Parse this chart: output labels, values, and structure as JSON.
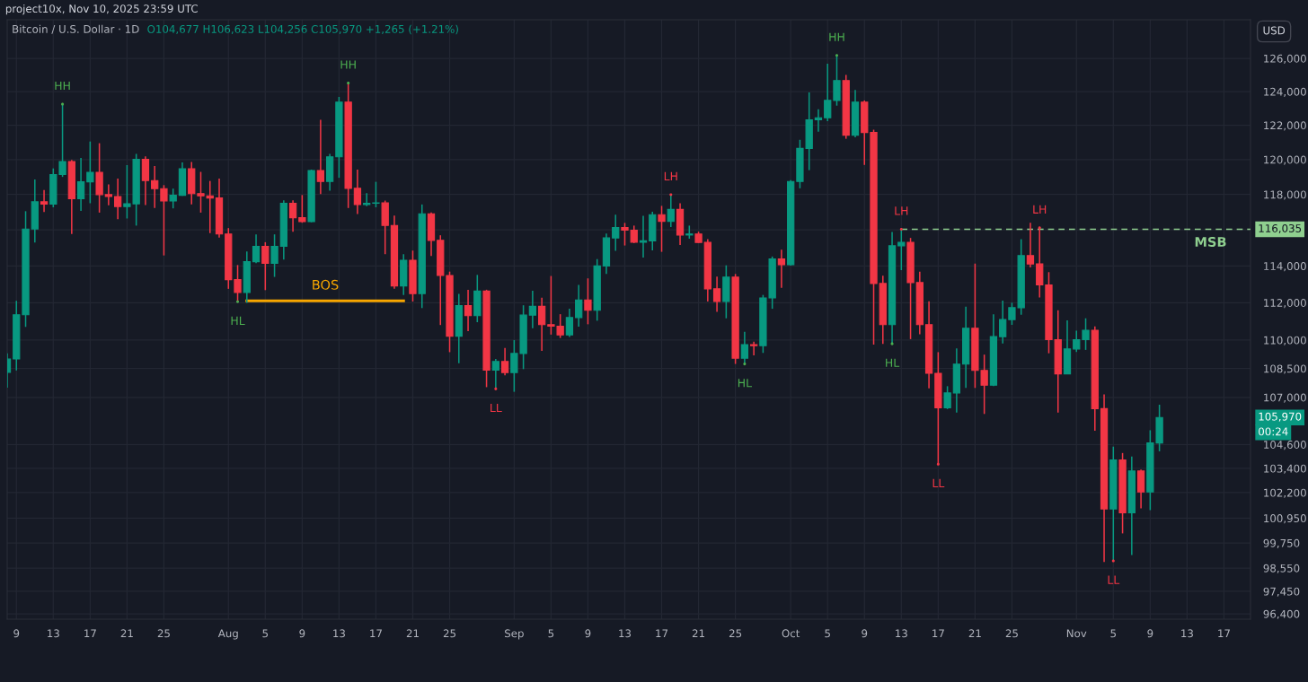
{
  "chart_data": {
    "type": "candlestick",
    "title": "Bitcoin / U.S. Dollar · 1D",
    "subtitle": "O104,677 H106,623 L104,256 C105,970 +1,265 (+1.21%)",
    "x": [
      "2025-07-08",
      "2025-07-09",
      "2025-07-10",
      "2025-07-11",
      "2025-07-12",
      "2025-07-13",
      "2025-07-14",
      "2025-07-15",
      "2025-07-16",
      "2025-07-17",
      "2025-07-18",
      "2025-07-19",
      "2025-07-20",
      "2025-07-21",
      "2025-07-22",
      "2025-07-23",
      "2025-07-24",
      "2025-07-25",
      "2025-07-26",
      "2025-07-27",
      "2025-07-28",
      "2025-07-29",
      "2025-07-30",
      "2025-07-31",
      "2025-08-01",
      "2025-08-02",
      "2025-08-03",
      "2025-08-04",
      "2025-08-05",
      "2025-08-06",
      "2025-08-07",
      "2025-08-08",
      "2025-08-09",
      "2025-08-10",
      "2025-08-11",
      "2025-08-12",
      "2025-08-13",
      "2025-08-14",
      "2025-08-15",
      "2025-08-16",
      "2025-08-17",
      "2025-08-18",
      "2025-08-19",
      "2025-08-20",
      "2025-08-21",
      "2025-08-22",
      "2025-08-23",
      "2025-08-24",
      "2025-08-25",
      "2025-08-26",
      "2025-08-27",
      "2025-08-28",
      "2025-08-29",
      "2025-08-30",
      "2025-08-31",
      "2025-09-01",
      "2025-09-02",
      "2025-09-03",
      "2025-09-04",
      "2025-09-05",
      "2025-09-06",
      "2025-09-07",
      "2025-09-08",
      "2025-09-09",
      "2025-09-10",
      "2025-09-11",
      "2025-09-12",
      "2025-09-13",
      "2025-09-14",
      "2025-09-15",
      "2025-09-16",
      "2025-09-17",
      "2025-09-18",
      "2025-09-19",
      "2025-09-20",
      "2025-09-21",
      "2025-09-22",
      "2025-09-23",
      "2025-09-24",
      "2025-09-25",
      "2025-09-26",
      "2025-09-27",
      "2025-09-28",
      "2025-09-29",
      "2025-09-30",
      "2025-10-01",
      "2025-10-02",
      "2025-10-03",
      "2025-10-04",
      "2025-10-05",
      "2025-10-06",
      "2025-10-07",
      "2025-10-08",
      "2025-10-09",
      "2025-10-10",
      "2025-10-11",
      "2025-10-12",
      "2025-10-13",
      "2025-10-14",
      "2025-10-15",
      "2025-10-16",
      "2025-10-17",
      "2025-10-18",
      "2025-10-19",
      "2025-10-20",
      "2025-10-21",
      "2025-10-22",
      "2025-10-23",
      "2025-10-24",
      "2025-10-25",
      "2025-10-26",
      "2025-10-27",
      "2025-10-28",
      "2025-10-29",
      "2025-10-30",
      "2025-10-31",
      "2025-11-01",
      "2025-11-02",
      "2025-11-03",
      "2025-11-04",
      "2025-11-05",
      "2025-11-06",
      "2025-11-07",
      "2025-11-08",
      "2025-11-09",
      "2025-11-10"
    ],
    "ohlc": [
      [
        108300,
        109300,
        107500,
        109000
      ],
      [
        109000,
        112100,
        108400,
        111350
      ],
      [
        111350,
        117050,
        110700,
        116050
      ],
      [
        116050,
        118860,
        115300,
        117580
      ],
      [
        117580,
        118250,
        117000,
        117450
      ],
      [
        117450,
        119490,
        117270,
        119140
      ],
      [
        119140,
        123250,
        119000,
        119890
      ],
      [
        119890,
        119980,
        115770,
        117750
      ],
      [
        117750,
        120100,
        117070,
        118720
      ],
      [
        118720,
        121050,
        117500,
        119260
      ],
      [
        119260,
        120950,
        116970,
        117990
      ],
      [
        117990,
        118570,
        117380,
        117880
      ],
      [
        117880,
        118900,
        116600,
        117315
      ],
      [
        117315,
        119680,
        116640,
        117470
      ],
      [
        117470,
        120330,
        116240,
        120020
      ],
      [
        120020,
        120190,
        117400,
        118790
      ],
      [
        118790,
        119630,
        117230,
        118330
      ],
      [
        118330,
        118530,
        114580,
        117630
      ],
      [
        117630,
        118330,
        117210,
        117950
      ],
      [
        117950,
        119830,
        117920,
        119470
      ],
      [
        119470,
        119860,
        117430,
        118050
      ],
      [
        118050,
        119290,
        116970,
        117920
      ],
      [
        117920,
        118770,
        115820,
        117800
      ],
      [
        117800,
        118900,
        115570,
        115770
      ],
      [
        115770,
        116100,
        112750,
        113250
      ],
      [
        113250,
        114050,
        112050,
        112550
      ],
      [
        112550,
        114800,
        111990,
        114235
      ],
      [
        114235,
        115750,
        114160,
        115085
      ],
      [
        115085,
        115315,
        112680,
        114140
      ],
      [
        114140,
        115750,
        113400,
        115085
      ],
      [
        115085,
        117665,
        114350,
        117500
      ],
      [
        117500,
        117665,
        115900,
        116685
      ],
      [
        116685,
        117965,
        116400,
        116460
      ],
      [
        116460,
        119420,
        116430,
        119370
      ],
      [
        119370,
        122320,
        118015,
        118740
      ],
      [
        118740,
        120330,
        118210,
        120160
      ],
      [
        120160,
        123680,
        118950,
        123370
      ],
      [
        123370,
        124510,
        117230,
        118350
      ],
      [
        118350,
        119420,
        116890,
        117430
      ],
      [
        117430,
        118070,
        117330,
        117500
      ],
      [
        117500,
        118720,
        117270,
        117520
      ],
      [
        117520,
        117650,
        114650,
        116250
      ],
      [
        116250,
        116800,
        112750,
        112910
      ],
      [
        112910,
        114650,
        112420,
        114315
      ],
      [
        114315,
        114850,
        112060,
        112490
      ],
      [
        112490,
        117430,
        111710,
        116900
      ],
      [
        116900,
        116985,
        114555,
        115415
      ],
      [
        115415,
        115700,
        110800,
        113480
      ],
      [
        113480,
        113690,
        109360,
        110205
      ],
      [
        110205,
        112470,
        108780,
        111840
      ],
      [
        111840,
        112700,
        110480,
        111300
      ],
      [
        111300,
        113510,
        110950,
        112630
      ],
      [
        112630,
        112700,
        107530,
        108420
      ],
      [
        108420,
        109000,
        107440,
        108870
      ],
      [
        108870,
        109580,
        108150,
        108290
      ],
      [
        108290,
        110000,
        107290,
        109290
      ],
      [
        109290,
        111860,
        108470,
        111330
      ],
      [
        111330,
        112650,
        110630,
        111800
      ],
      [
        111800,
        112270,
        109430,
        110820
      ],
      [
        110820,
        113450,
        110290,
        110740
      ],
      [
        110740,
        111380,
        110110,
        110270
      ],
      [
        110270,
        111670,
        110160,
        111200
      ],
      [
        111200,
        112960,
        110710,
        112150
      ],
      [
        112150,
        113320,
        110840,
        111590
      ],
      [
        111590,
        114380,
        111030,
        114000
      ],
      [
        114000,
        115800,
        113560,
        115550
      ],
      [
        115550,
        116850,
        114830,
        116135
      ],
      [
        116135,
        116390,
        115130,
        115985
      ],
      [
        115985,
        116240,
        115265,
        115315
      ],
      [
        115315,
        116790,
        114460,
        115390
      ],
      [
        115390,
        117020,
        114860,
        116850
      ],
      [
        116850,
        117350,
        114780,
        116480
      ],
      [
        116480,
        117985,
        116165,
        117150
      ],
      [
        117150,
        117500,
        115160,
        115715
      ],
      [
        115715,
        116240,
        115510,
        115770
      ],
      [
        115770,
        115900,
        115280,
        115300
      ],
      [
        115300,
        115480,
        112060,
        112750
      ],
      [
        112750,
        113420,
        111510,
        112060
      ],
      [
        112060,
        114035,
        111160,
        113390
      ],
      [
        113390,
        113560,
        108740,
        109045
      ],
      [
        109045,
        110440,
        108740,
        109760
      ],
      [
        109760,
        109920,
        109190,
        109700
      ],
      [
        109700,
        112420,
        109320,
        112260
      ],
      [
        112260,
        114520,
        111670,
        114390
      ],
      [
        114390,
        114900,
        112800,
        114065
      ],
      [
        114065,
        118810,
        114020,
        118740
      ],
      [
        118740,
        121150,
        118350,
        120650
      ],
      [
        120650,
        123950,
        119390,
        122320
      ],
      [
        122320,
        122940,
        121620,
        122440
      ],
      [
        122440,
        125670,
        122240,
        123470
      ],
      [
        123470,
        126180,
        123160,
        124660
      ],
      [
        124660,
        125000,
        121210,
        121420
      ],
      [
        121420,
        124100,
        121300,
        123370
      ],
      [
        123370,
        123470,
        119690,
        121580
      ],
      [
        121580,
        121740,
        109760,
        113040
      ],
      [
        113040,
        113460,
        109800,
        110820
      ],
      [
        110820,
        115885,
        109800,
        115115
      ],
      [
        115115,
        116035,
        113770,
        115300
      ],
      [
        115300,
        115550,
        110050,
        113090
      ],
      [
        113090,
        113690,
        110310,
        110820
      ],
      [
        110820,
        112080,
        107470,
        108250
      ],
      [
        108250,
        109360,
        103610,
        106470
      ],
      [
        106470,
        107580,
        106400,
        107230
      ],
      [
        107230,
        109560,
        106220,
        108730
      ],
      [
        108730,
        111780,
        107490,
        110630
      ],
      [
        110630,
        114130,
        107490,
        108400
      ],
      [
        108400,
        109230,
        106150,
        107630
      ],
      [
        107630,
        111380,
        107580,
        110180
      ],
      [
        110180,
        112110,
        109820,
        111090
      ],
      [
        111090,
        112000,
        110810,
        111730
      ],
      [
        111730,
        115480,
        111350,
        114570
      ],
      [
        114570,
        116400,
        113920,
        114110
      ],
      [
        114110,
        116115,
        112280,
        112960
      ],
      [
        112960,
        113660,
        109300,
        110020
      ],
      [
        110020,
        111590,
        106220,
        108220
      ],
      [
        108220,
        111050,
        108200,
        109530
      ],
      [
        109530,
        110500,
        109370,
        110020
      ],
      [
        110020,
        111160,
        109480,
        110520
      ],
      [
        110520,
        110720,
        105300,
        106420
      ],
      [
        106420,
        107150,
        98840,
        101400
      ],
      [
        101400,
        104490,
        98890,
        103820
      ],
      [
        103820,
        104170,
        100210,
        101210
      ],
      [
        101210,
        103990,
        99170,
        103270
      ],
      [
        103270,
        103340,
        101430,
        102230
      ],
      [
        102230,
        105320,
        101340,
        104677
      ],
      [
        104677,
        106623,
        104256,
        105970
      ]
    ],
    "colors": [
      "#089981",
      "#089981",
      "#089981",
      "#089981",
      "#f23645",
      "#089981",
      "#089981",
      "#f23645",
      "#089981",
      "#089981",
      "#f23645",
      "#f23645",
      "#f23645",
      "#089981",
      "#089981",
      "#f23645",
      "#f23645",
      "#f23645",
      "#089981",
      "#089981",
      "#f23645",
      "#f23645",
      "#f23645",
      "#f23645",
      "#f23645",
      "#f23645",
      "#089981",
      "#089981",
      "#f23645",
      "#089981",
      "#089981",
      "#f23645",
      "#f23645",
      "#089981",
      "#f23645",
      "#089981",
      "#089981",
      "#f23645",
      "#f23645",
      "#089981",
      "#089981",
      "#f23645",
      "#f23645",
      "#089981",
      "#f23645",
      "#089981",
      "#f23645",
      "#f23645",
      "#f23645",
      "#089981",
      "#f23645",
      "#089981",
      "#f23645",
      "#089981",
      "#f23645",
      "#089981",
      "#089981",
      "#089981",
      "#f23645",
      "#f23645",
      "#f23645",
      "#089981",
      "#089981",
      "#f23645",
      "#089981",
      "#089981",
      "#089981",
      "#f23645",
      "#f23645",
      "#089981",
      "#089981",
      "#f23645",
      "#089981",
      "#f23645",
      "#089981",
      "#f23645",
      "#f23645",
      "#f23645",
      "#089981",
      "#f23645",
      "#089981",
      "#f23645",
      "#089981",
      "#089981",
      "#f23645",
      "#089981",
      "#089981",
      "#089981",
      "#089981",
      "#089981",
      "#089981",
      "#f23645",
      "#089981",
      "#f23645",
      "#f23645",
      "#f23645",
      "#089981",
      "#089981",
      "#f23645",
      "#f23645",
      "#f23645",
      "#f23645",
      "#089981",
      "#089981",
      "#089981",
      "#f23645",
      "#f23645",
      "#089981",
      "#089981",
      "#089981",
      "#089981",
      "#f23645",
      "#f23645",
      "#f23645",
      "#f23645",
      "#089981",
      "#089981",
      "#089981",
      "#f23645",
      "#f23645",
      "#089981",
      "#f23645",
      "#089981",
      "#f23645",
      "#089981",
      "#089981"
    ],
    "series": [
      {
        "type": "line",
        "color": "#f7a600",
        "line_style": "solid",
        "x": [
          "2025-08-03",
          "2025-08-20"
        ],
        "values": [
          112100,
          112100
        ]
      },
      {
        "type": "line",
        "color": "#8fcf8f",
        "line_style": "dashed",
        "x": [
          "2025-10-13",
          "2025-11-19T21:00"
        ],
        "values": [
          116035,
          116035
        ]
      },
      {
        "type": "scatter",
        "marker": "circle",
        "color": "#4caf50",
        "x": [
          "2025-07-14",
          "2025-08-02",
          "2025-08-14",
          "2025-09-26",
          "2025-10-06",
          "2025-10-12"
        ],
        "values": [
          123250,
          112050,
          124510,
          108740,
          126180,
          109800
        ],
        "value_labels": [
          "HH",
          "HL",
          "HH",
          "HL",
          "HH",
          "HL"
        ]
      },
      {
        "type": "scatter",
        "marker": "circle",
        "color": "#f23645",
        "x": [
          "2025-08-30",
          "2025-09-18",
          "2025-10-13",
          "2025-10-17",
          "2025-10-28",
          "2025-11-05"
        ],
        "values": [
          107440,
          117985,
          116035,
          103610,
          116115,
          98890
        ],
        "value_labels": [
          "LL",
          "LH",
          "LH",
          "LL",
          "LH",
          "LL"
        ]
      }
    ],
    "annotations": [
      "project10x, Nov 10, 2025 23:59 UTC",
      "USD",
      "BOS",
      "MSB",
      "116,035",
      "105,970",
      "00:24"
    ],
    "log": true,
    "grid": true,
    "xlim": [
      "2025-07-08",
      "2025-11-19T21:00"
    ],
    "xticks": [
      {
        "value": "2025-07-09",
        "label": "9"
      },
      {
        "value": "2025-07-13",
        "label": "13"
      },
      {
        "value": "2025-07-17",
        "label": "17"
      },
      {
        "value": "2025-07-21",
        "label": "21"
      },
      {
        "value": "2025-07-25",
        "label": "25"
      },
      {
        "value": "2025-08-01",
        "label": "Aug"
      },
      {
        "value": "2025-08-05",
        "label": "5"
      },
      {
        "value": "2025-08-09",
        "label": "9"
      },
      {
        "value": "2025-08-13",
        "label": "13"
      },
      {
        "value": "2025-08-17",
        "label": "17"
      },
      {
        "value": "2025-08-21",
        "label": "21"
      },
      {
        "value": "2025-08-25",
        "label": "25"
      },
      {
        "value": "2025-09-01",
        "label": "Sep"
      },
      {
        "value": "2025-09-05",
        "label": "5"
      },
      {
        "value": "2025-09-09",
        "label": "9"
      },
      {
        "value": "2025-09-13",
        "label": "13"
      },
      {
        "value": "2025-09-17",
        "label": "17"
      },
      {
        "value": "2025-09-21",
        "label": "21"
      },
      {
        "value": "2025-09-25",
        "label": "25"
      },
      {
        "value": "2025-10-01",
        "label": "Oct"
      },
      {
        "value": "2025-10-05",
        "label": "5"
      },
      {
        "value": "2025-10-09",
        "label": "9"
      },
      {
        "value": "2025-10-13",
        "label": "13"
      },
      {
        "value": "2025-10-17",
        "label": "17"
      },
      {
        "value": "2025-10-21",
        "label": "21"
      },
      {
        "value": "2025-10-25",
        "label": "25"
      },
      {
        "value": "2025-11-01",
        "label": "Nov"
      },
      {
        "value": "2025-11-05",
        "label": "5"
      },
      {
        "value": "2025-11-09",
        "label": "9"
      },
      {
        "value": "2025-11-13",
        "label": "13"
      },
      {
        "value": "2025-11-17",
        "label": "17"
      }
    ],
    "ylim": [
      96150,
      128370
    ],
    "yticks": [
      {
        "value": 126000,
        "label": "126,000"
      },
      {
        "value": 124000,
        "label": "124,000"
      },
      {
        "value": 122000,
        "label": "122,000"
      },
      {
        "value": 120000,
        "label": "120,000"
      },
      {
        "value": 118000,
        "label": "118,000"
      },
      {
        "value": 116000,
        "label": null
      },
      {
        "value": 114000,
        "label": "114,000"
      },
      {
        "value": 112000,
        "label": "112,000"
      },
      {
        "value": 110000,
        "label": "110,000"
      },
      {
        "value": 108500,
        "label": "108,500"
      },
      {
        "value": 107000,
        "label": "107,000"
      },
      {
        "value": 104600,
        "label": "104,600"
      },
      {
        "value": 103400,
        "label": "103,400"
      },
      {
        "value": 102200,
        "label": "102,200"
      },
      {
        "value": 100950,
        "label": "100,950"
      },
      {
        "value": 99750,
        "label": "99,750"
      },
      {
        "value": 98550,
        "label": "98,550"
      },
      {
        "value": 97450,
        "label": "97,450"
      },
      {
        "value": 96400,
        "label": "96,400"
      }
    ]
  }
}
